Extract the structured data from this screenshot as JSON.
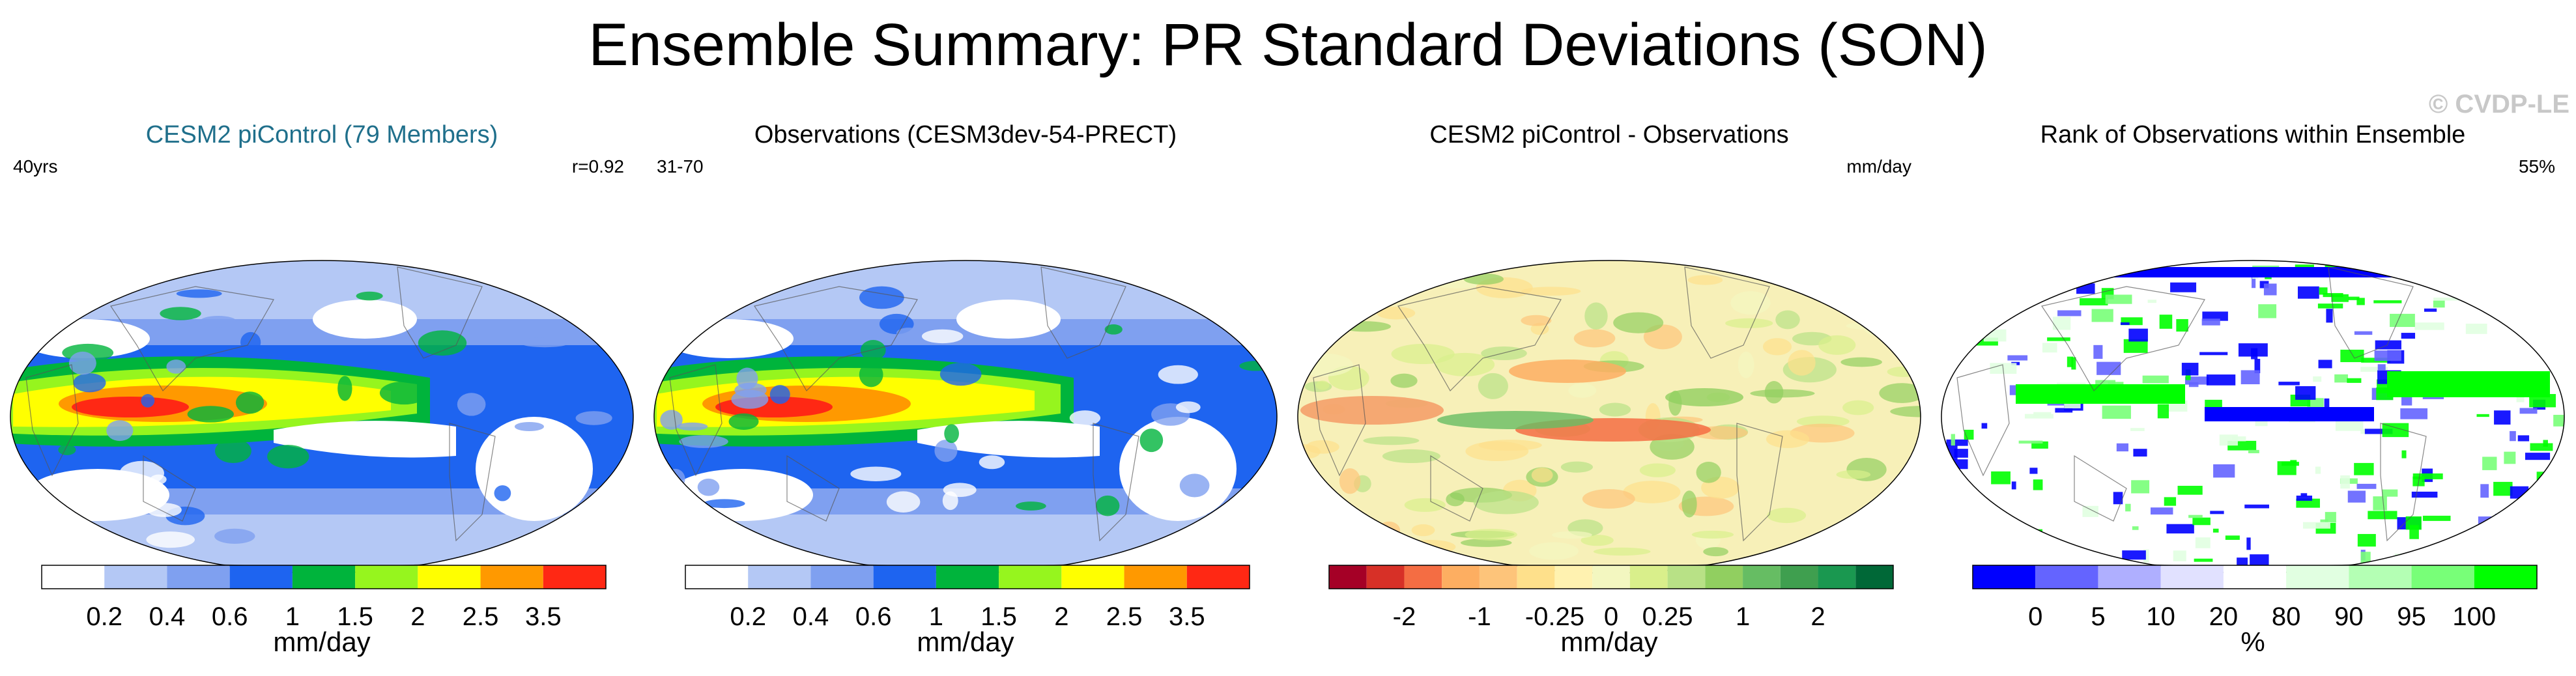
{
  "title": "Ensemble Summary: PR Standard Deviations (SON)",
  "watermark": "© CVDP-LE",
  "panels": [
    {
      "title": "CESM2 piControl (79 Members)",
      "title_color": "#1f6f8b",
      "left_label": "40yrs",
      "right_label": "r=0.92",
      "colorbar": {
        "label": "mm/day",
        "colors": [
          "#ffffff",
          "#b4c8f5",
          "#7fa0f0",
          "#1e64f0",
          "#00b43c",
          "#96f51e",
          "#ffff00",
          "#ff9900",
          "#ff2814"
        ],
        "ticks": [
          "0.2",
          "0.4",
          "0.6",
          "1",
          "1.5",
          "2",
          "2.5",
          "3.5"
        ]
      }
    },
    {
      "title": "Observations (CESM3dev-54-PRECT)",
      "title_color": "#000000",
      "left_label": "31-70",
      "right_label": "",
      "colorbar": {
        "label": "mm/day",
        "colors": [
          "#ffffff",
          "#b4c8f5",
          "#7fa0f0",
          "#1e64f0",
          "#00b43c",
          "#96f51e",
          "#ffff00",
          "#ff9900",
          "#ff2814"
        ],
        "ticks": [
          "0.2",
          "0.4",
          "0.6",
          "1",
          "1.5",
          "2",
          "2.5",
          "3.5"
        ]
      }
    },
    {
      "title": "CESM2 piControl - Observations",
      "title_color": "#000000",
      "left_label": "",
      "right_label": "mm/day",
      "colorbar": {
        "label": "mm/day",
        "colors": [
          "#a50026",
          "#d73027",
          "#f46d43",
          "#fdae61",
          "#fdc47a",
          "#fee08b",
          "#fff2b0",
          "#f3f7c0",
          "#d9ef8b",
          "#b8e186",
          "#91cf60",
          "#66bd63",
          "#3f9f4f",
          "#1a9850",
          "#006837"
        ],
        "ticks": [
          "-2",
          "-1",
          "-0.25",
          "0",
          "0.25",
          "1",
          "2"
        ]
      }
    },
    {
      "title": "Rank of Observations within Ensemble",
      "title_color": "#000000",
      "left_label": "",
      "right_label": "55%",
      "colorbar": {
        "label": "%",
        "colors": [
          "#0000ff",
          "#6464ff",
          "#afafff",
          "#e1e1ff",
          "#ffffff",
          "#e1ffe1",
          "#b4ffb4",
          "#78ff78",
          "#00ff00"
        ],
        "ticks": [
          "0",
          "5",
          "10",
          "20",
          "80",
          "90",
          "95",
          "100"
        ]
      }
    }
  ]
}
